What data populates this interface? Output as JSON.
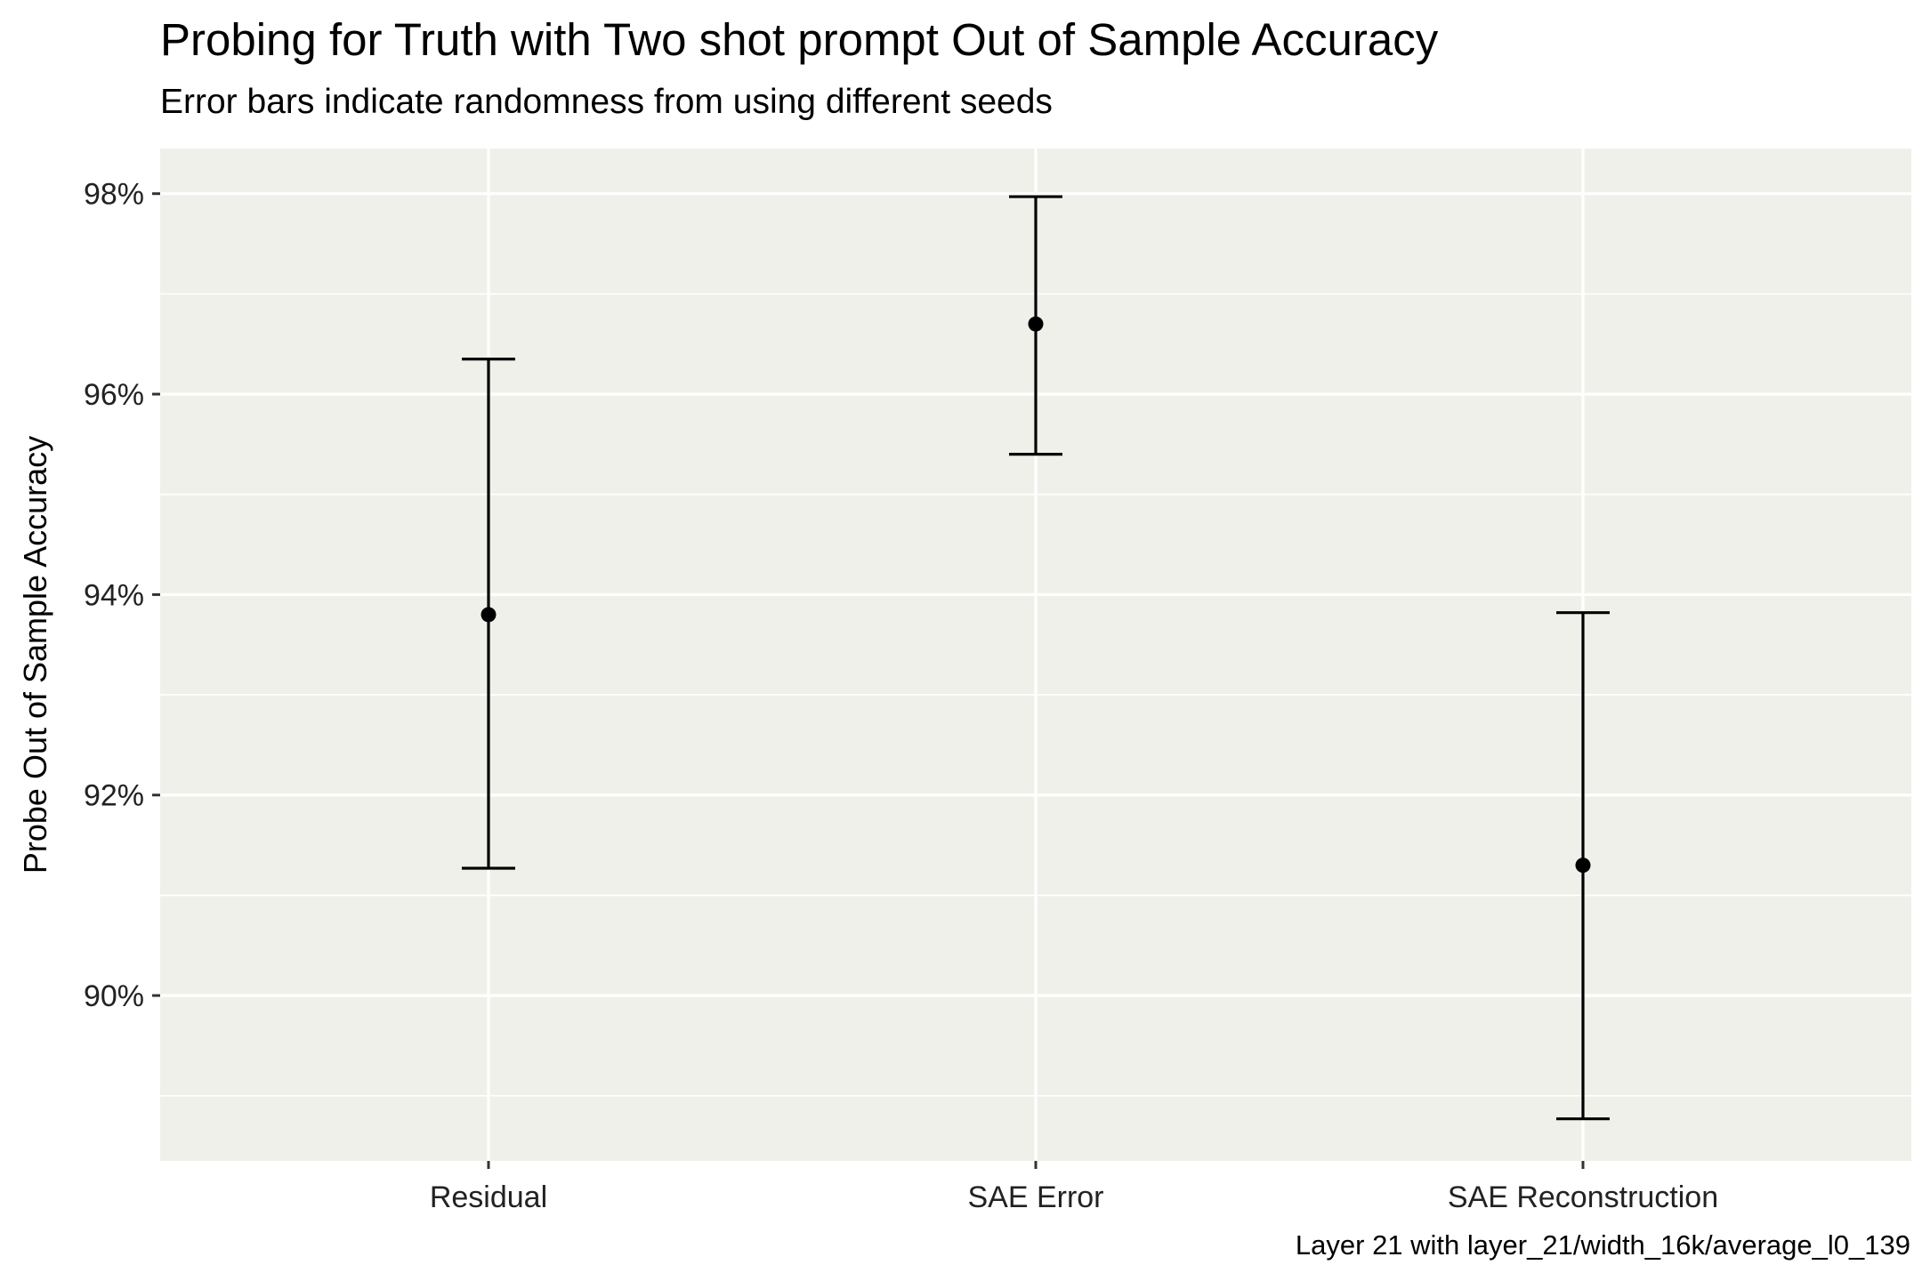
{
  "chart_data": {
    "type": "scatter",
    "title": "Probing for Truth with Two shot prompt Out of Sample Accuracy",
    "subtitle": "Error bars indicate randomness from using different seeds",
    "caption": "Layer 21 with layer_21/width_16k/average_l0_139",
    "xlabel": "",
    "ylabel": "Probe Out of Sample Accuracy",
    "categories": [
      "Residual",
      "SAE Error",
      "SAE Reconstruction"
    ],
    "values": [
      93.8,
      96.7,
      91.3
    ],
    "error_low": [
      91.27,
      95.4,
      88.77
    ],
    "error_high": [
      96.35,
      97.97,
      93.82
    ],
    "ylim": [
      88.35,
      98.45
    ],
    "yticks": [
      90,
      92,
      94,
      96,
      98
    ],
    "ytick_labels": [
      "90%",
      "92%",
      "94%",
      "96%",
      "98%"
    ],
    "grid": true,
    "legend": "none",
    "colors": {
      "panel": "#F0F0EA",
      "grid": "#FFFFFF",
      "marks": "#000000",
      "tick_text": "#222222"
    }
  }
}
